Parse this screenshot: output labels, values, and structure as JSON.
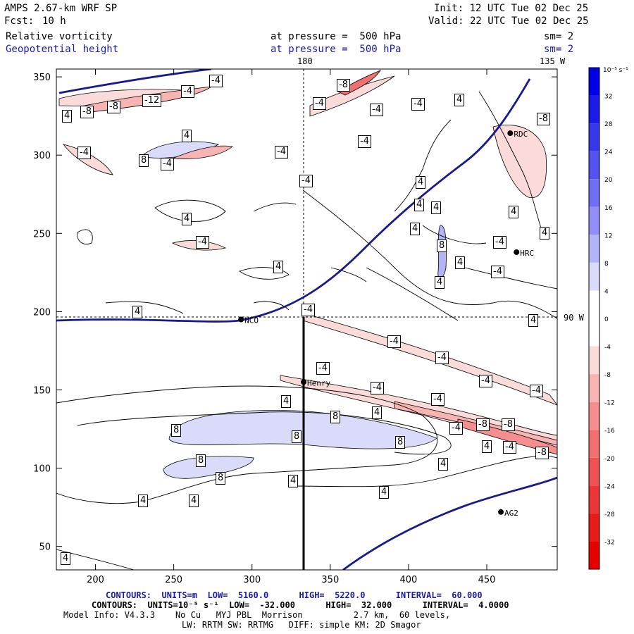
{
  "header": {
    "model": "AMPS 2.67-km WRF SP",
    "fcst_label": "Fcst:",
    "fcst_value": "10 h",
    "init": "Init: 12 UTC Tue 02 Dec 25",
    "valid": "Valid: 22 UTC Tue 02 Dec 25",
    "field1": "Relative vorticity",
    "field1_level": "at pressure =  500 hPa",
    "field1_sm": "sm= 2",
    "field2": "Geopotential height",
    "field2_level": "at pressure =  500 hPa",
    "field2_sm": "sm= 2"
  },
  "map_labels": {
    "lon180": "180",
    "lon135w": "135 W",
    "lat90w": "90 W",
    "stations": [
      "NCO",
      "Henry",
      "HRC",
      "RDC",
      "AG2"
    ]
  },
  "chart_data": {
    "type": "contour",
    "title": "AMPS 2.67-km WRF SP",
    "xlim": [
      175,
      495
    ],
    "ylim": [
      35,
      355
    ],
    "x_ticks": [
      200,
      250,
      300,
      350,
      400,
      450
    ],
    "y_ticks": [
      50,
      100,
      150,
      200,
      250,
      300,
      350
    ],
    "colorbar": {
      "units": "10⁻⁵ s⁻¹",
      "levels": [
        32,
        28,
        24,
        20,
        16,
        12,
        8,
        4,
        0,
        -4,
        -8,
        -12,
        -16,
        -20,
        -24,
        -28,
        -32
      ],
      "colors": [
        "#0000e6",
        "#1b1be8",
        "#3636ea",
        "#5252ee",
        "#6f6ff2",
        "#8f8ff5",
        "#b3b3f8",
        "#dadafb",
        "#ffffff",
        "#ffffff",
        "#fbdada",
        "#f8b3b3",
        "#f58f8f",
        "#f26f6f",
        "#ee5252",
        "#ea3636",
        "#e81b1b",
        "#e60000"
      ]
    },
    "vorticity_labels": [
      "4",
      "-4",
      "8",
      "-8",
      "-12"
    ],
    "stations": [
      {
        "name": "NCO",
        "x": 293,
        "y": 195
      },
      {
        "name": "Henry",
        "x": 333,
        "y": 155
      },
      {
        "name": "HRC",
        "x": 469,
        "y": 238
      },
      {
        "name": "RDC",
        "x": 465,
        "y": 314
      },
      {
        "name": "AG2",
        "x": 459,
        "y": 72
      }
    ],
    "height_contours_info": "CONTOURS:  UNITS=m  LOW=  5160.0      HIGH=  5220.0      INTERVAL=  60.000",
    "vort_contours_info": "CONTOURS:  UNITS=10⁻⁵ s⁻¹  LOW=  -32.000      HIGH=  32.000      INTERVAL=  4.0000"
  },
  "footer": {
    "line1": "CONTOURS:  UNITS=m  LOW=  5160.0      HIGH=  5220.0      INTERVAL=  60.000",
    "line2": "CONTOURS:  UNITS=10⁻⁵ s⁻¹  LOW=  -32.000      HIGH=  32.000      INTERVAL=  4.0000",
    "line3": "Model Info: V4.3.3    No Cu   MYJ PBL  Morrison          2.7 km,  60 levels,",
    "line4": "LW: RRTM SW: RRTMG   DIFF: simple KM: 2D Smagor"
  }
}
